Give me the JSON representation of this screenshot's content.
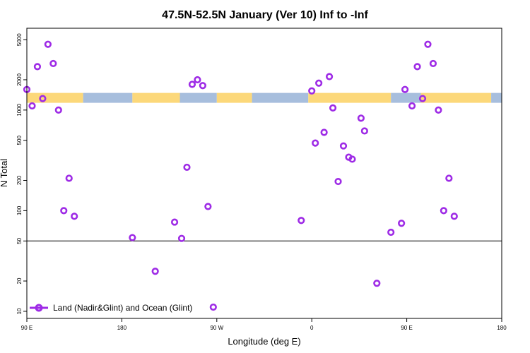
{
  "chart_data": {
    "type": "scatter",
    "title": "47.5N-52.5N January (Ver 10)   Inf to -Inf",
    "xlabel": "Longitude (deg E)",
    "ylabel": "N Total",
    "xlim": [
      -90,
      180
    ],
    "xaxis_note": "x is longitude in degrees; 180 to 270 repeats -180 to -90 (wrap-around)",
    "yscale": "log",
    "ylim": [
      8.5,
      6500
    ],
    "x_ticks": [
      {
        "value": -90,
        "label": "90 E"
      },
      {
        "value": -36,
        "label": "180"
      },
      {
        "value": 18,
        "label": "90 W"
      },
      {
        "value": 72,
        "label": "0"
      },
      {
        "value": 126,
        "label": "90 E"
      },
      {
        "value": 180,
        "label": "180"
      }
    ],
    "y_ticks": [
      10,
      20,
      50,
      100,
      200,
      500,
      1000,
      2000,
      5000
    ],
    "y_tick_labels": [
      "10",
      "20",
      "50",
      "100",
      "200",
      "500",
      "1000",
      "2000",
      "5000"
    ],
    "reference_line_y": 50,
    "land_ocean_band": {
      "y_range": [
        1180,
        1480
      ],
      "colors": {
        "land": "#FCD87A",
        "ocean": "#A7BEDD"
      },
      "segments": [
        {
          "x_range": [
            -90,
            -58
          ],
          "surface": "land"
        },
        {
          "x_range": [
            -58,
            -30
          ],
          "surface": "ocean"
        },
        {
          "x_range": [
            -30,
            -3
          ],
          "surface": "land"
        },
        {
          "x_range": [
            -3,
            18
          ],
          "surface": "ocean"
        },
        {
          "x_range": [
            18,
            38
          ],
          "surface": "land"
        },
        {
          "x_range": [
            38,
            70
          ],
          "surface": "ocean"
        },
        {
          "x_range": [
            70,
            117
          ],
          "surface": "land"
        },
        {
          "x_range": [
            117,
            134
          ],
          "surface": "ocean"
        },
        {
          "x_range": [
            134,
            174
          ],
          "surface": "land"
        },
        {
          "x_range": [
            174,
            180
          ],
          "surface": "ocean"
        }
      ]
    },
    "series": [
      {
        "name": "Land (Nadir&Glint) and Ocean (Glint)",
        "color": "#9E2BE6",
        "marker": "ring",
        "points": [
          {
            "x": -90,
            "y": 1600
          },
          {
            "x": -87,
            "y": 1100
          },
          {
            "x": -84,
            "y": 2700
          },
          {
            "x": -81,
            "y": 1300
          },
          {
            "x": -78,
            "y": 4500
          },
          {
            "x": -75,
            "y": 2900
          },
          {
            "x": -72,
            "y": 1000
          },
          {
            "x": -69,
            "y": 100
          },
          {
            "x": -66,
            "y": 210
          },
          {
            "x": -63,
            "y": 88
          },
          {
            "x": -30,
            "y": 54
          },
          {
            "x": -17,
            "y": 25
          },
          {
            "x": -6,
            "y": 77
          },
          {
            "x": -2,
            "y": 53
          },
          {
            "x": 1,
            "y": 270
          },
          {
            "x": 4,
            "y": 1800
          },
          {
            "x": 7,
            "y": 2000
          },
          {
            "x": 10,
            "y": 1750
          },
          {
            "x": 13,
            "y": 110
          },
          {
            "x": 16,
            "y": 11
          },
          {
            "x": 66,
            "y": 80
          },
          {
            "x": 72,
            "y": 1550
          },
          {
            "x": 74,
            "y": 470
          },
          {
            "x": 76,
            "y": 1850
          },
          {
            "x": 79,
            "y": 600
          },
          {
            "x": 82,
            "y": 2150
          },
          {
            "x": 84,
            "y": 1050
          },
          {
            "x": 87,
            "y": 195
          },
          {
            "x": 90,
            "y": 440
          },
          {
            "x": 93,
            "y": 340
          },
          {
            "x": 95,
            "y": 325
          },
          {
            "x": 100,
            "y": 830
          },
          {
            "x": 102,
            "y": 620
          },
          {
            "x": 109,
            "y": 19
          },
          {
            "x": 117,
            "y": 61
          },
          {
            "x": 123,
            "y": 75
          },
          {
            "x": 125,
            "y": 1600
          },
          {
            "x": 129,
            "y": 1100
          },
          {
            "x": 132,
            "y": 2700
          },
          {
            "x": 135,
            "y": 1300
          },
          {
            "x": 138,
            "y": 4500
          },
          {
            "x": 141,
            "y": 2900
          },
          {
            "x": 144,
            "y": 1000
          },
          {
            "x": 147,
            "y": 100
          },
          {
            "x": 150,
            "y": 210
          },
          {
            "x": 153,
            "y": 88
          }
        ]
      }
    ]
  }
}
